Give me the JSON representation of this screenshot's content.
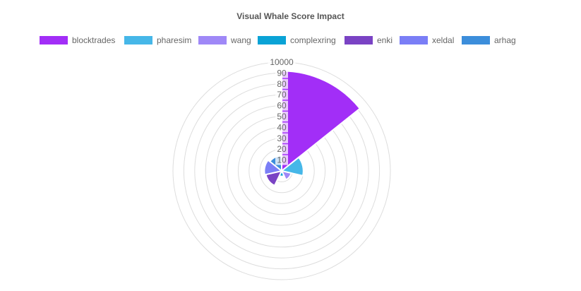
{
  "chart_data": {
    "type": "polarArea",
    "title": "Visual Whale Score Impact",
    "categories": [
      "blocktrades",
      "pharesim",
      "wang",
      "complexring",
      "enki",
      "xeldal",
      "arhag"
    ],
    "values": [
      9200,
      2000,
      900,
      500,
      1500,
      1600,
      1400
    ],
    "colors": [
      "#A22EF7",
      "#46B7E8",
      "#9F88F7",
      "#0AA3D6",
      "#7A43C4",
      "#7A7EF6",
      "#3C8EDB"
    ],
    "r_ticks": [
      "10",
      "20",
      "30",
      "40",
      "50",
      "60",
      "70",
      "80",
      "90",
      "10000"
    ],
    "r_min": 0,
    "r_max": 10000,
    "ring_count": 10,
    "grid": true,
    "legend_position": "top"
  }
}
